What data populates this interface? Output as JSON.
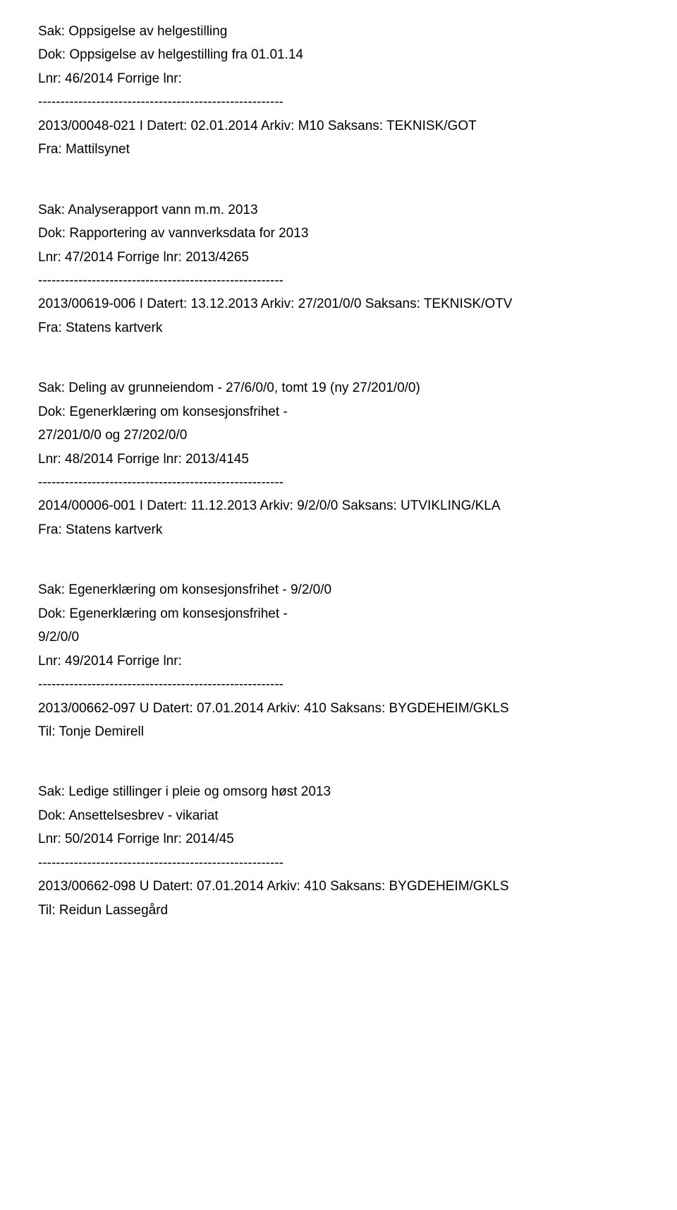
{
  "separator": "-------------------------------------------------------",
  "entries": [
    {
      "sak": "Sak: Oppsigelse av helgestilling",
      "dok": "Dok: Oppsigelse av helgestilling fra 01.01.14",
      "lnr": "Lnr: 46/2014   Forrige lnr:",
      "meta": "2013/00048-021 I   Datert: 02.01.2014   Arkiv: M10   Saksans: TEKNISK/GOT",
      "party": "Fra: Mattilsynet"
    },
    {
      "sak": "Sak: Analyserapport vann m.m. 2013",
      "dok": "Dok: Rapportering av vannverksdata for 2013",
      "lnr": "Lnr: 47/2014   Forrige lnr: 2013/4265",
      "meta": "2013/00619-006 I   Datert: 13.12.2013   Arkiv: 27/201/0/0   Saksans: TEKNISK/OTV",
      "party": "Fra: Statens kartverk"
    },
    {
      "sak": "Sak: Deling av grunneiendom - 27/6/0/0, tomt 19 (ny 27/201/0/0)",
      "dok": "Dok: Egenerklæring om konsesjonsfrihet -",
      "dok2": "27/201/0/0 og 27/202/0/0",
      "lnr": "Lnr: 48/2014   Forrige lnr: 2013/4145",
      "meta": "2014/00006-001 I   Datert: 11.12.2013   Arkiv: 9/2/0/0   Saksans: UTVIKLING/KLA",
      "party": "Fra: Statens kartverk"
    },
    {
      "sak": "Sak: Egenerklæring om konsesjonsfrihet - 9/2/0/0",
      "dok": "Dok: Egenerklæring om konsesjonsfrihet -",
      "dok2": "9/2/0/0",
      "lnr": "Lnr: 49/2014   Forrige lnr:",
      "meta": "2013/00662-097 U   Datert: 07.01.2014   Arkiv: 410   Saksans: BYGDEHEIM/GKLS",
      "party": "Til: Tonje Demirell"
    },
    {
      "sak": "Sak: Ledige stillinger i pleie og omsorg høst 2013",
      "dok": "Dok: Ansettelsesbrev - vikariat",
      "lnr": "Lnr: 50/2014   Forrige lnr: 2014/45",
      "meta": "2013/00662-098 U   Datert: 07.01.2014   Arkiv: 410   Saksans: BYGDEHEIM/GKLS",
      "party": "Til: Reidun Lassegård"
    }
  ]
}
